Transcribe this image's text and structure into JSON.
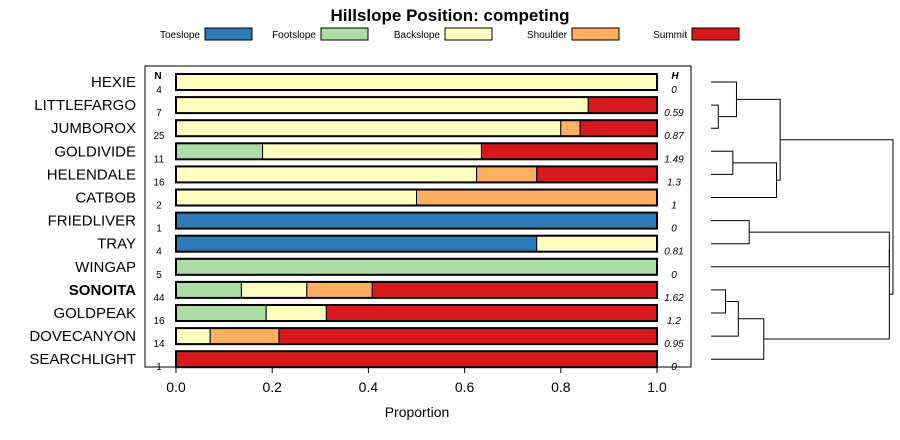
{
  "chart_data": {
    "type": "bar",
    "orientation": "horizontal",
    "stacked": true,
    "title": "Hillslope Position: competing",
    "xlabel": "Proportion",
    "xlim": [
      0,
      1
    ],
    "xticks": [
      "0.0",
      "0.2",
      "0.4",
      "0.6",
      "0.8",
      "1.0"
    ],
    "xtick_values": [
      0,
      0.2,
      0.4,
      0.6,
      0.8,
      1.0
    ],
    "n_header": "N",
    "h_header": "H",
    "legend": [
      {
        "name": "Toeslope",
        "color": "#2c7bb6"
      },
      {
        "name": "Footslope",
        "color": "#abdda4"
      },
      {
        "name": "Backslope",
        "color": "#ffffbf"
      },
      {
        "name": "Shoulder",
        "color": "#fdae61"
      },
      {
        "name": "Summit",
        "color": "#d7191c"
      }
    ],
    "categories": [
      "HEXIE",
      "LITTLEFARGO",
      "JUMBOROX",
      "GOLDIVIDE",
      "HELENDALE",
      "CATBOB",
      "FRIEDLIVER",
      "TRAY",
      "WINGAP",
      "SONOITA",
      "GOLDPEAK",
      "DOVECANYON",
      "SEARCHLIGHT"
    ],
    "highlight": "SONOITA",
    "n": [
      "4",
      "7",
      "25",
      "11",
      "16",
      "2",
      "1",
      "4",
      "5",
      "44",
      "16",
      "14",
      "1"
    ],
    "h": [
      "0",
      "0.59",
      "0.87",
      "1.49",
      "1.3",
      "1",
      "0",
      "0.81",
      "0",
      "1.62",
      "1.2",
      "0.95",
      "0"
    ],
    "series": [
      {
        "name": "Toeslope",
        "values": [
          0,
          0,
          0,
          0,
          0,
          0,
          1,
          0.75,
          0,
          0,
          0,
          0,
          0
        ]
      },
      {
        "name": "Footslope",
        "values": [
          0,
          0,
          0,
          0.18,
          0,
          0,
          0,
          0,
          1,
          0.136,
          0.1875,
          0,
          0
        ]
      },
      {
        "name": "Backslope",
        "values": [
          1,
          0.857,
          0.8,
          0.455,
          0.625,
          0.5,
          0,
          0.25,
          0,
          0.136,
          0.125,
          0.071,
          0
        ]
      },
      {
        "name": "Shoulder",
        "values": [
          0,
          0,
          0.04,
          0,
          0.125,
          0.5,
          0,
          0,
          0,
          0.136,
          0,
          0.143,
          0
        ]
      },
      {
        "name": "Summit",
        "values": [
          0,
          0.143,
          0.16,
          0.365,
          0.25,
          0,
          0,
          0,
          0,
          0.592,
          0.6875,
          0.786,
          1
        ]
      }
    ],
    "dendrogram": {
      "leaves": [
        "HEXIE",
        "LITTLEFARGO",
        "JUMBOROX",
        "GOLDIVIDE",
        "HELENDALE",
        "CATBOB",
        "FRIEDLIVER",
        "TRAY",
        "WINGAP",
        "SONOITA",
        "GOLDPEAK",
        "DOVECANYON",
        "SEARCHLIGHT"
      ],
      "merges": [
        {
          "a": "L1",
          "b": "L2",
          "height": 0.04
        },
        {
          "a": "L0",
          "b": "M0",
          "height": 0.14
        },
        {
          "a": "L3",
          "b": "L4",
          "height": 0.12
        },
        {
          "a": "M2",
          "b": "L5",
          "height": 0.36
        },
        {
          "a": "M1",
          "b": "M3",
          "height": 0.38
        },
        {
          "a": "L6",
          "b": "L7",
          "height": 0.21
        },
        {
          "a": "M5",
          "b": "L8",
          "height": 0.98
        },
        {
          "a": "L9",
          "b": "L10",
          "height": 0.08
        },
        {
          "a": "M7",
          "b": "L11",
          "height": 0.15
        },
        {
          "a": "M8",
          "b": "L12",
          "height": 0.29
        },
        {
          "a": "M6",
          "b": "M9",
          "height": 0.98
        },
        {
          "a": "M4",
          "b": "M10",
          "height": 1.0
        }
      ]
    }
  }
}
